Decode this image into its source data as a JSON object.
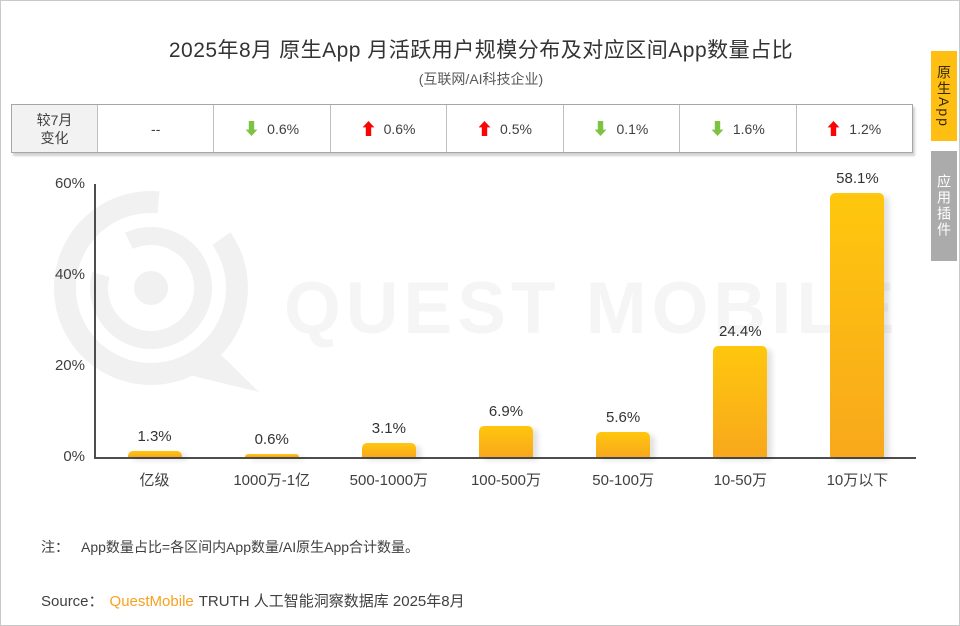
{
  "header": {
    "title": "2025年8月 原生App 月活跃用户规模分布及对应区间App数量占比",
    "subtitle": "(互联网/AI科技企业)"
  },
  "change_row": {
    "header_line1": "较7月",
    "header_line2": "变化",
    "up_color": "#fb0404",
    "down_color": "#7dc242",
    "cells": [
      {
        "direction": "none",
        "value": "--"
      },
      {
        "direction": "down",
        "value": "0.6%"
      },
      {
        "direction": "up",
        "value": "0.6%"
      },
      {
        "direction": "up",
        "value": "0.5%"
      },
      {
        "direction": "down",
        "value": "0.1%"
      },
      {
        "direction": "down",
        "value": "1.6%"
      },
      {
        "direction": "up",
        "value": "1.2%"
      }
    ]
  },
  "chart_data": {
    "type": "bar",
    "title": "2025年8月 原生App 月活跃用户规模分布及对应区间App数量占比",
    "subtitle": "(互联网/AI科技企业)",
    "categories": [
      "亿级",
      "1000万-1亿",
      "500-1000万",
      "100-500万",
      "50-100万",
      "10-50万",
      "10万以下"
    ],
    "values": [
      1.3,
      0.6,
      3.1,
      6.9,
      5.6,
      24.4,
      58.1
    ],
    "value_labels": [
      "1.3%",
      "0.6%",
      "3.1%",
      "6.9%",
      "5.6%",
      "24.4%",
      "58.1%"
    ],
    "change_vs_july": [
      "--",
      "-0.6%",
      "+0.6%",
      "+0.5%",
      "-0.1%",
      "-1.6%",
      "+1.2%"
    ],
    "xlabel": "",
    "ylabel": "",
    "ylim": [
      0,
      60
    ],
    "yticks": [
      "0%",
      "20%",
      "40%",
      "60%"
    ],
    "grid": false,
    "legend": false,
    "bar_color_top": "#ffc70d",
    "bar_color_bottom": "#f8a81c"
  },
  "tabs": [
    {
      "label": "原生App",
      "color": "#ffbe14",
      "text_color": "#332a00",
      "active": true
    },
    {
      "label": "应用插件",
      "color": "#ababab",
      "text_color": "#ffffff",
      "active": false
    }
  ],
  "watermark": {
    "icon": "questmobile-logo",
    "text": "QUEST MOBILE",
    "color": "#f2f2f2"
  },
  "note": {
    "prefix": "注：",
    "text": "App数量占比=各区间内App数量/AI原生App合计数量。"
  },
  "source": {
    "label": "Source：",
    "brand": "QuestMobile",
    "brand_color": "#f9a11e",
    "rest": "TRUTH 人工智能洞察数据库 2025年8月"
  }
}
